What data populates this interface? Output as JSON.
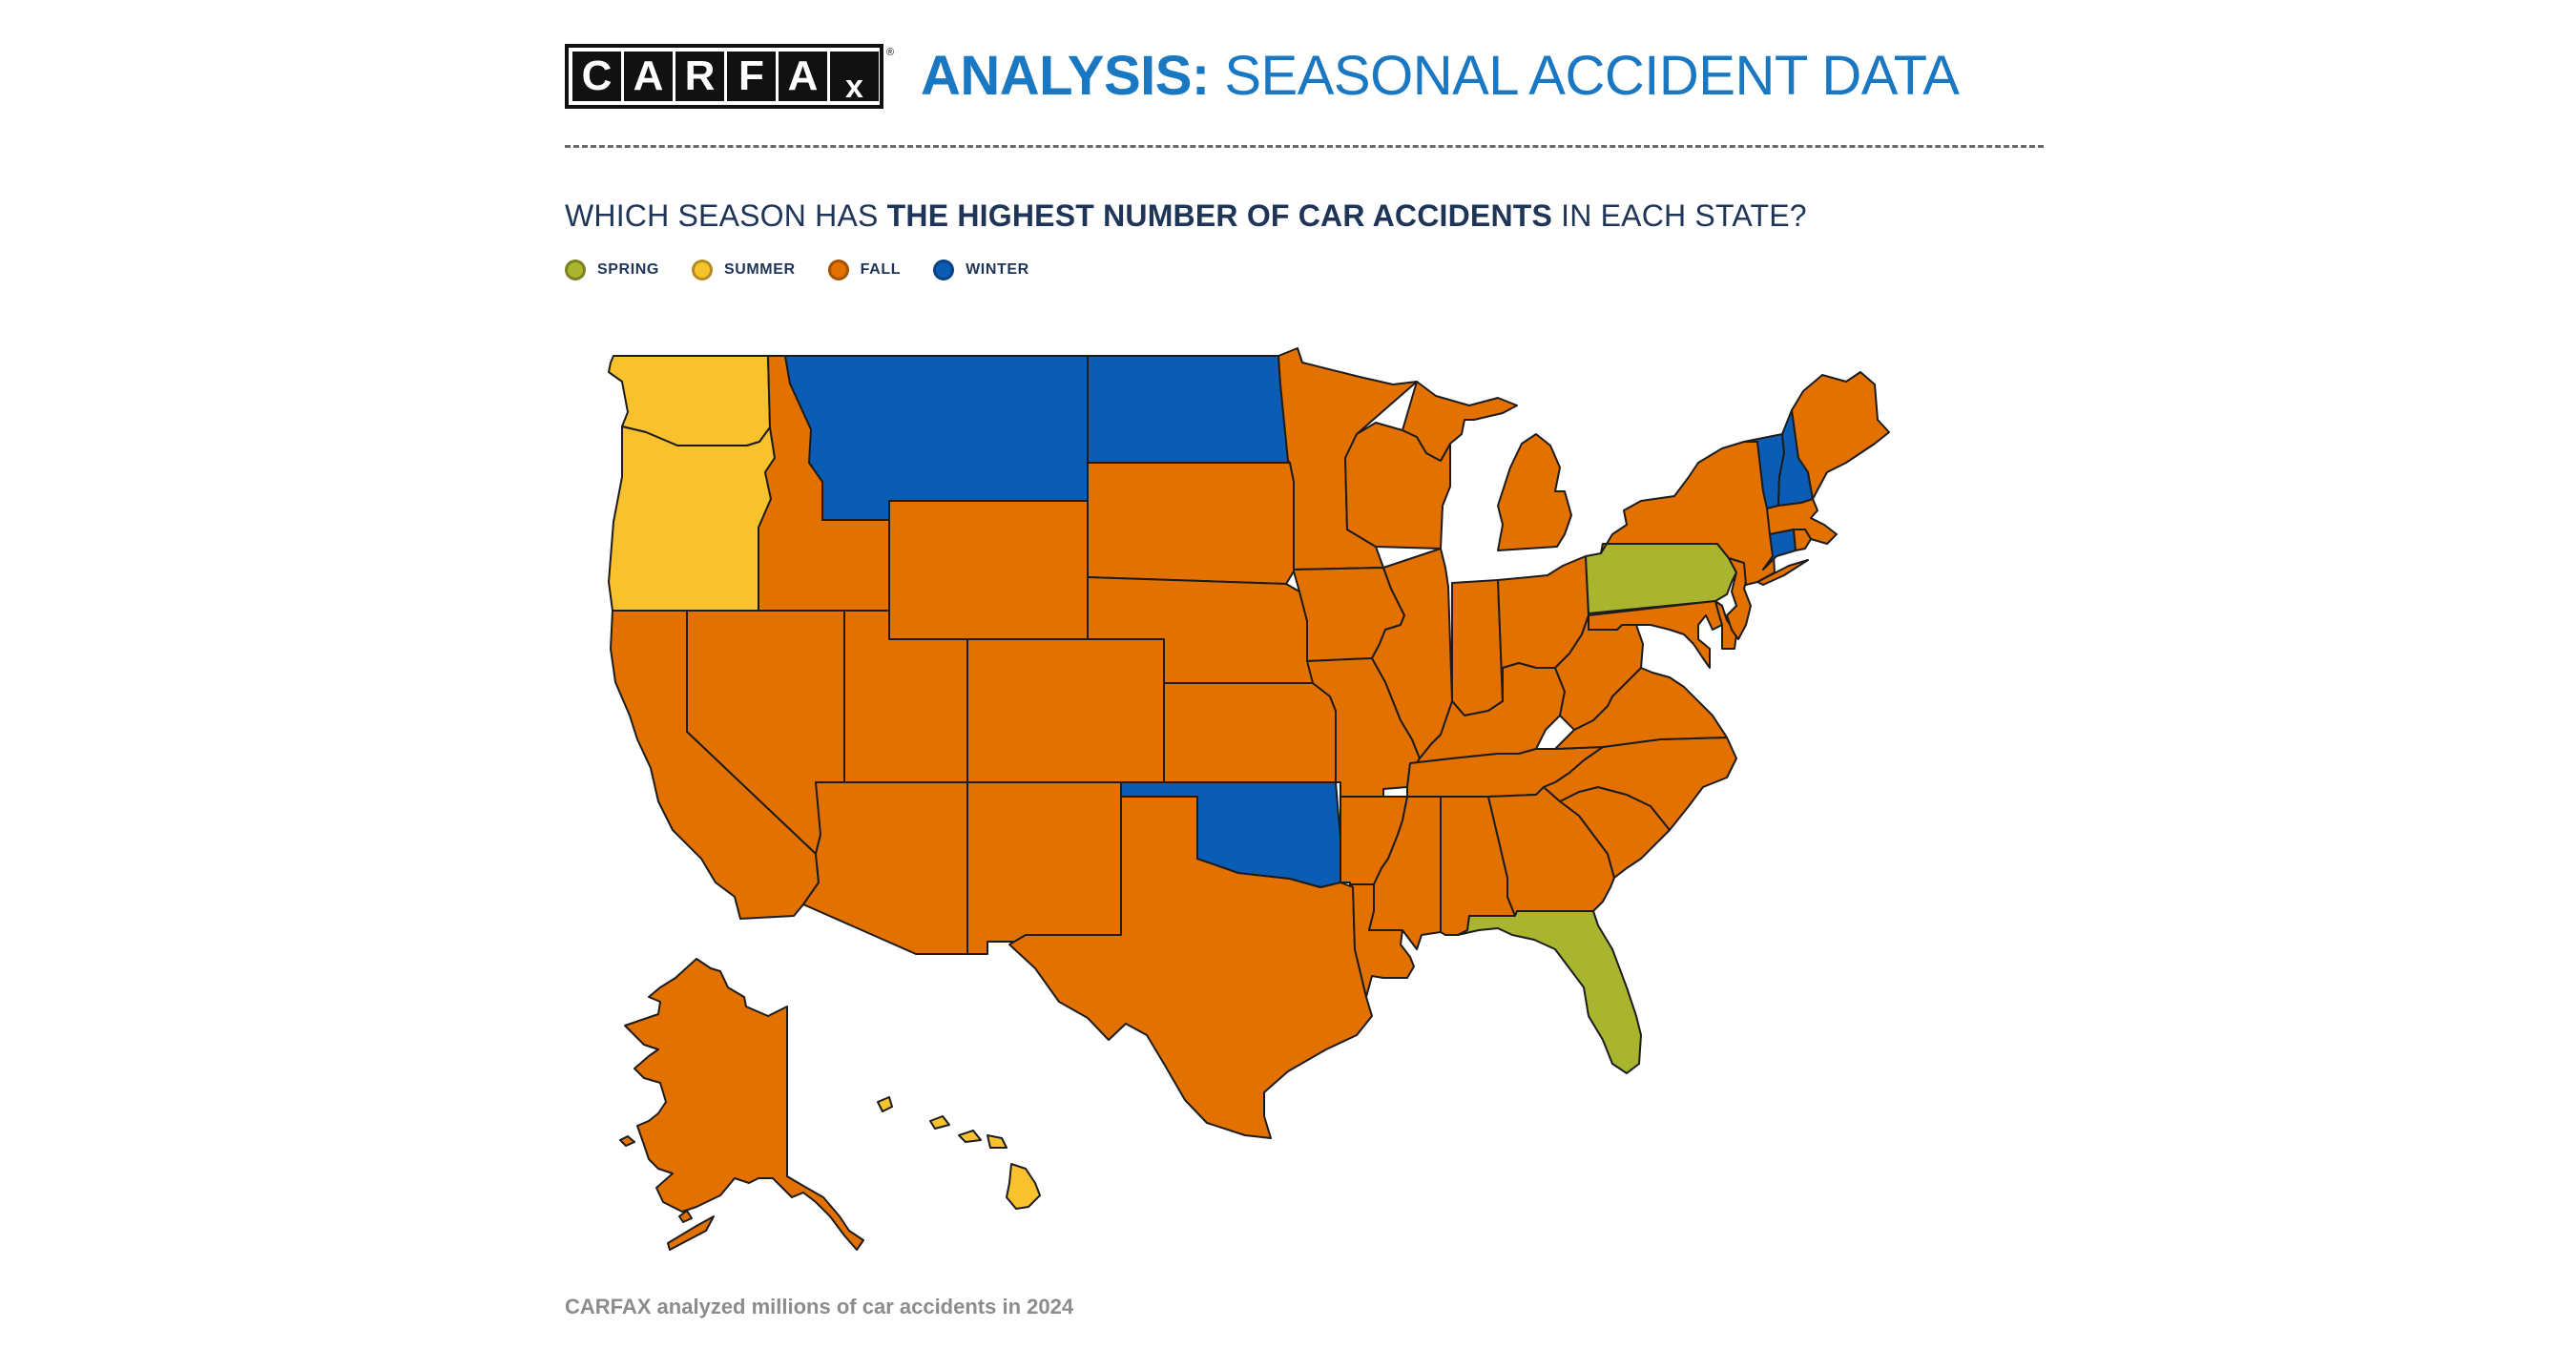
{
  "logo": {
    "text": "CARFAX",
    "mark": "®"
  },
  "header": {
    "title_strong": "ANALYSIS:",
    "title_light": " SEASONAL ACCIDENT DATA"
  },
  "question": {
    "pre": "WHICH SEASON HAS ",
    "strong": "THE HIGHEST NUMBER OF CAR ACCIDENTS",
    "post": " IN EACH STATE?"
  },
  "legend": [
    {
      "label": "SPRING",
      "color": "#a9b52f"
    },
    {
      "label": "SUMMER",
      "color": "#f8c22f"
    },
    {
      "label": "FALL",
      "color": "#e37100"
    },
    {
      "label": "WINTER",
      "color": "#0b5cb5"
    }
  ],
  "map": {
    "states": {
      "Spring": [
        "PA",
        "FL"
      ],
      "Summer": [
        "WA",
        "OR",
        "HI"
      ],
      "Winter": [
        "MT",
        "ND",
        "OK",
        "NH",
        "VT",
        "CT"
      ],
      "Fall": [
        "ID",
        "WY",
        "SD",
        "NE",
        "KS",
        "CO",
        "UT",
        "NV",
        "CA",
        "AZ",
        "NM",
        "TX",
        "MN",
        "IA",
        "MO",
        "AR",
        "LA",
        "WI",
        "MI",
        "IL",
        "IN",
        "OH",
        "KY",
        "TN",
        "MS",
        "AL",
        "GA",
        "SC",
        "NC",
        "VA",
        "WV",
        "MD",
        "DE",
        "NJ",
        "NY",
        "MA",
        "RI",
        "ME",
        "AK"
      ]
    }
  },
  "footnote": "CARFAX analyzed millions of car accidents in 2024"
}
